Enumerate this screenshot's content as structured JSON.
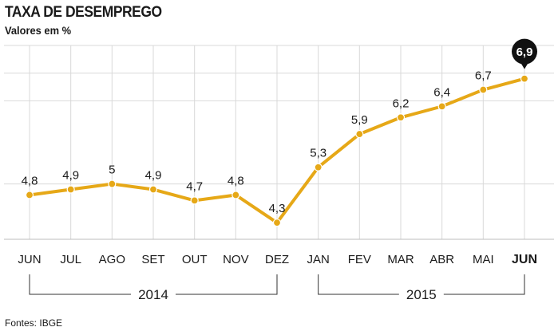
{
  "header": {
    "title": "TAXA DE DESEMPREGO",
    "subtitle": "Valores em %"
  },
  "footer": {
    "source": "Fontes: IBGE"
  },
  "colors": {
    "line": "#e6a817",
    "grid": "#d9d9d9",
    "badge": "#111111"
  },
  "chart_data": {
    "type": "line",
    "categories": [
      "JUN",
      "JUL",
      "AGO",
      "SET",
      "OUT",
      "NOV",
      "DEZ",
      "JAN",
      "FEV",
      "MAR",
      "ABR",
      "MAI",
      "JUN"
    ],
    "values": [
      4.8,
      4.9,
      5,
      4.9,
      4.7,
      4.8,
      4.3,
      5.3,
      5.9,
      6.2,
      6.4,
      6.7,
      6.9
    ],
    "value_labels": [
      "4,8",
      "4,9",
      "5",
      "4,9",
      "4,7",
      "4,8",
      "4,3",
      "5,3",
      "5,9",
      "6,2",
      "6,4",
      "6,7",
      "6,9"
    ],
    "highlight_index": 12,
    "year_groups": [
      {
        "label": "2014",
        "from": 0,
        "to": 6
      },
      {
        "label": "2015",
        "from": 7,
        "to": 12
      }
    ],
    "ylim": [
      4,
      7.5
    ],
    "grid": true
  }
}
